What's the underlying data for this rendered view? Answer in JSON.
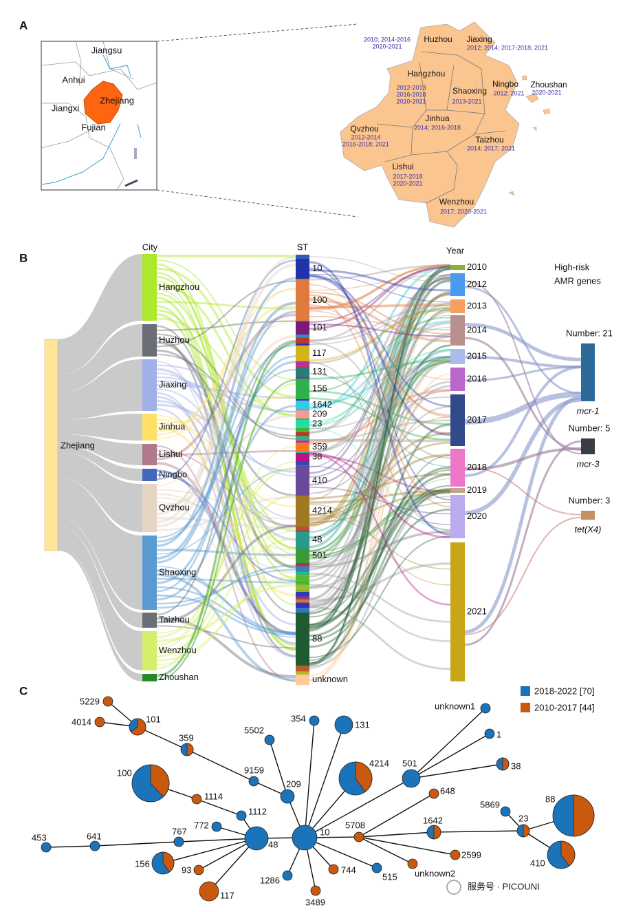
{
  "panel_a": {
    "label": "A",
    "provinces": [
      "Jiangsu",
      "Anhui",
      "Zhejiang",
      "Jiangxi",
      "Fujian"
    ],
    "cities": [
      {
        "name": "Huzhou",
        "years": [
          "2010; 2014-2016",
          "2020-2021"
        ]
      },
      {
        "name": "Jiaxing",
        "years": [
          "2012; 2014; 2017-2018; 2021"
        ]
      },
      {
        "name": "Hangzhou",
        "years": [
          "2012-2013",
          "2016-2018",
          "2020-2021"
        ]
      },
      {
        "name": "Shaoxing",
        "years": [
          "2013-2021"
        ]
      },
      {
        "name": "Ningbo",
        "years": [
          "2012; 2021"
        ]
      },
      {
        "name": "Zhoushan",
        "years": [
          "2020-2021"
        ]
      },
      {
        "name": "Jinhua",
        "years": [
          "2014; 2016-2018"
        ]
      },
      {
        "name": "Qvzhou",
        "years": [
          "2012-2014",
          "2016-2018; 2021"
        ]
      },
      {
        "name": "Taizhou",
        "years": [
          "2014; 2017; 2021"
        ]
      },
      {
        "name": "Lishui",
        "years": [
          "2017-2018",
          "2020-2021"
        ]
      },
      {
        "name": "Wenzhou",
        "years": [
          "2017; 2020-2021"
        ]
      }
    ]
  },
  "panel_b": {
    "label": "B",
    "headers": {
      "city": "City",
      "st": "ST",
      "year": "Year",
      "genes": [
        "High-risk",
        "AMR genes"
      ]
    },
    "root": "Zhejiang",
    "cities": [
      "Hangzhou",
      "Huzhou",
      "Jiaxing",
      "Jinhua",
      "Lishui",
      "Ningbo",
      "Qvzhou",
      "Shaoxing",
      "Taizhou",
      "Wenzhou",
      "Zhoushan"
    ],
    "st": [
      "10",
      "100",
      "101",
      "117",
      "131",
      "156",
      "1642",
      "209",
      "23",
      "359",
      "38",
      "410",
      "4214",
      "48",
      "501",
      "88",
      "unknown"
    ],
    "years": [
      "2010",
      "2012",
      "2013",
      "2014",
      "2015",
      "2016",
      "2017",
      "2018",
      "2019",
      "2020",
      "2021"
    ],
    "genes": [
      {
        "count": "Number: 21",
        "name": "mcr-1"
      },
      {
        "count": "Number: 5",
        "name": "mcr-3"
      },
      {
        "count": "Number: 3",
        "name": "tet(X4)"
      }
    ]
  },
  "panel_c": {
    "label": "C",
    "legend": [
      {
        "name": "2018-2022 [70]",
        "color": "#1b74b9"
      },
      {
        "name": "2010-2017 [44]",
        "color": "#c9590e"
      }
    ],
    "nodes": [
      "10",
      "48",
      "209",
      "9159",
      "359",
      "101",
      "5229",
      "4014",
      "100",
      "1114",
      "1112",
      "772",
      "767",
      "641",
      "453",
      "156",
      "93",
      "117",
      "1286",
      "3489",
      "744",
      "515",
      "unknown2",
      "2599",
      "5708",
      "1642",
      "648",
      "23",
      "5869",
      "88",
      "410",
      "501",
      "4214",
      "131",
      "354",
      "5502",
      "unknown1",
      "1",
      "38"
    ]
  },
  "watermark": "服务号 · PICOUNI"
}
